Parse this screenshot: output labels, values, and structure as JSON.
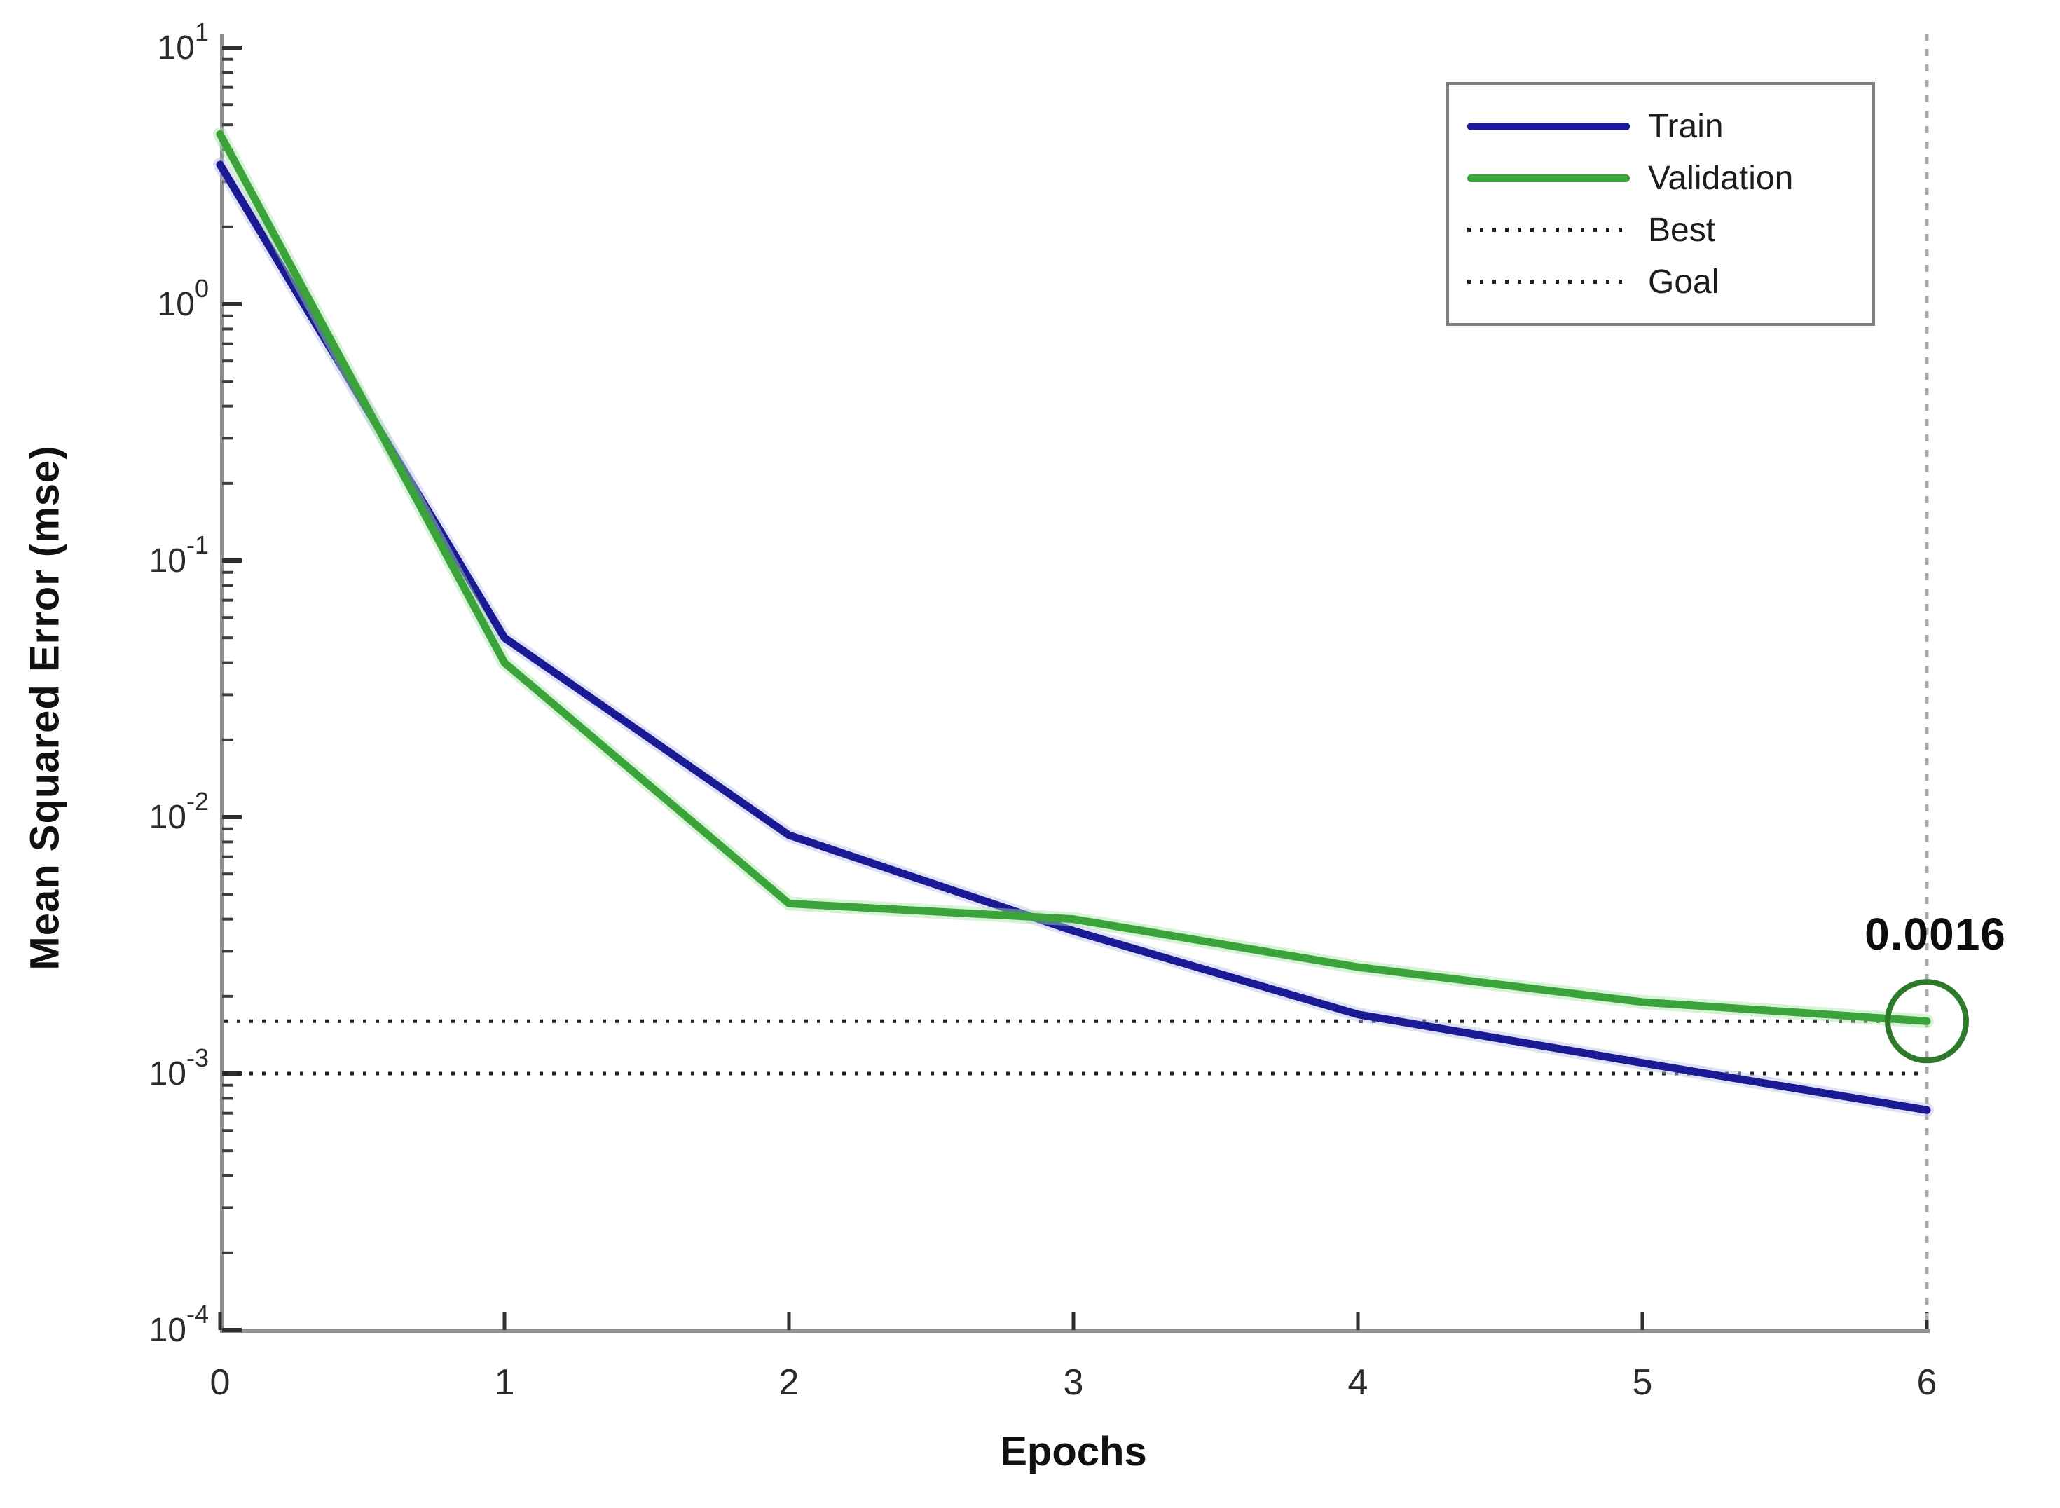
{
  "figure": {
    "background": "#ffffff",
    "axis_color": "#8f8f8f",
    "tick_color": "#2e2e2e",
    "tick_label_color": "#2a2a2a",
    "text_color": "#111111"
  },
  "chart_data": {
    "type": "line",
    "title": "",
    "xlabel": "Epochs",
    "ylabel": "Mean Squared Error  (mse)",
    "x_axis": {
      "min": 0,
      "max": 6,
      "ticks": [
        0,
        1,
        2,
        3,
        4,
        5,
        6
      ]
    },
    "y_axis": {
      "scale": "log10",
      "min_exponent": -4,
      "max_exponent": 1,
      "tick_exponents": [
        1,
        0,
        -1,
        -2,
        -3,
        -4
      ],
      "minor_ticks": true
    },
    "x": [
      0,
      1,
      2,
      3,
      4,
      5,
      6
    ],
    "series": [
      {
        "name": "Train",
        "type": "curve",
        "style": "solid",
        "color": "#1a1a94",
        "halo": "#b9bce8",
        "values": [
          3.5,
          0.05,
          0.0085,
          0.0036,
          0.0017,
          0.0011,
          0.00072
        ]
      },
      {
        "name": "Validation",
        "type": "curve",
        "style": "solid",
        "color": "#3aa33a",
        "halo": "#a9e2a9",
        "values": [
          4.6,
          0.04,
          0.0046,
          0.004,
          0.0026,
          0.0019,
          0.0016
        ]
      },
      {
        "name": "Best",
        "type": "hline",
        "style": "dotted",
        "color": "#1f1f1f",
        "value": 0.0016
      },
      {
        "name": "Goal",
        "type": "hline",
        "style": "dotted",
        "color": "#1f1f1f",
        "value": 0.001
      }
    ],
    "best": {
      "epoch": 6,
      "value": 0.0016,
      "annotation": "0.0016",
      "vline_color": "#a9a9a9",
      "marker_color": "#2d7a2d"
    },
    "legend_position": "top-right",
    "grid": false
  }
}
